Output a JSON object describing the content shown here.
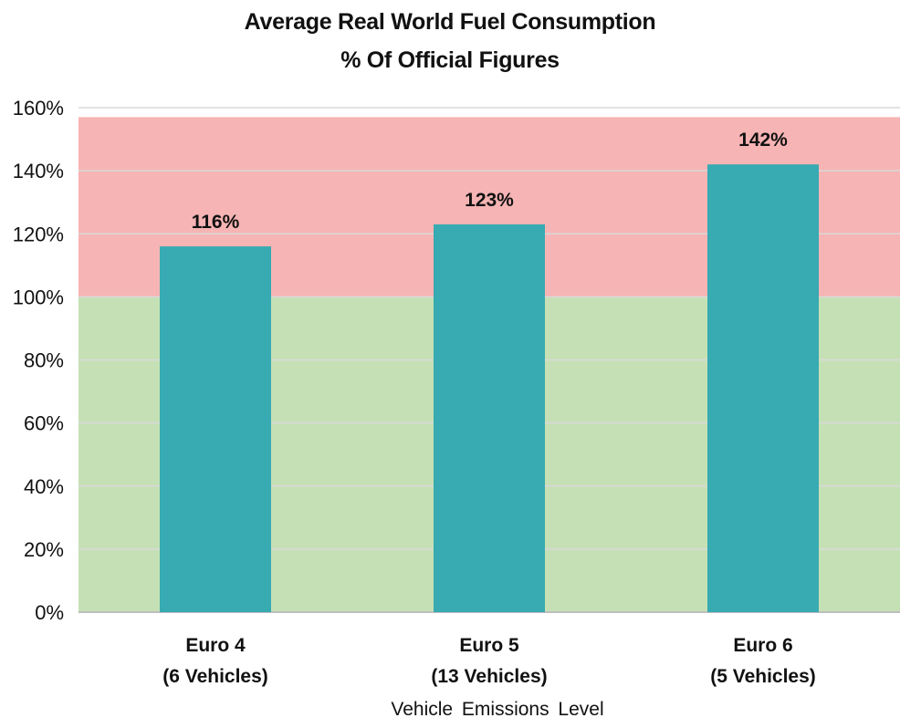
{
  "chart_data": {
    "type": "bar",
    "title": [
      "Average Real World Fuel Consumption",
      "% Of Official Figures"
    ],
    "xlabel": "Vehicle Emissions Level",
    "ylabel": "",
    "categories": [
      [
        "Euro 4",
        "(6 Vehicles)"
      ],
      [
        "Euro 5",
        "(13 Vehicles)"
      ],
      [
        "Euro 6",
        "(5 Vehicles)"
      ]
    ],
    "values": [
      116,
      123,
      142
    ],
    "data_labels": [
      "116%",
      "123%",
      "142%"
    ],
    "ylim": [
      0,
      160
    ],
    "yticks": [
      0,
      20,
      40,
      60,
      80,
      100,
      120,
      140,
      160
    ],
    "ytick_labels": [
      "0%",
      "20%",
      "40%",
      "60%",
      "80%",
      "100%",
      "120%",
      "140%",
      "160%"
    ],
    "grid": true,
    "legend": "none",
    "background_bands": [
      {
        "from": 0,
        "to": 100,
        "color": "#c6e0b5"
      },
      {
        "from": 100,
        "to": 157,
        "color": "#f7b4b4"
      }
    ],
    "colors": {
      "bar": "#38aab1",
      "gridline": "#d9d9d9",
      "axis": "#bfbfbf",
      "text": "#111111"
    }
  }
}
